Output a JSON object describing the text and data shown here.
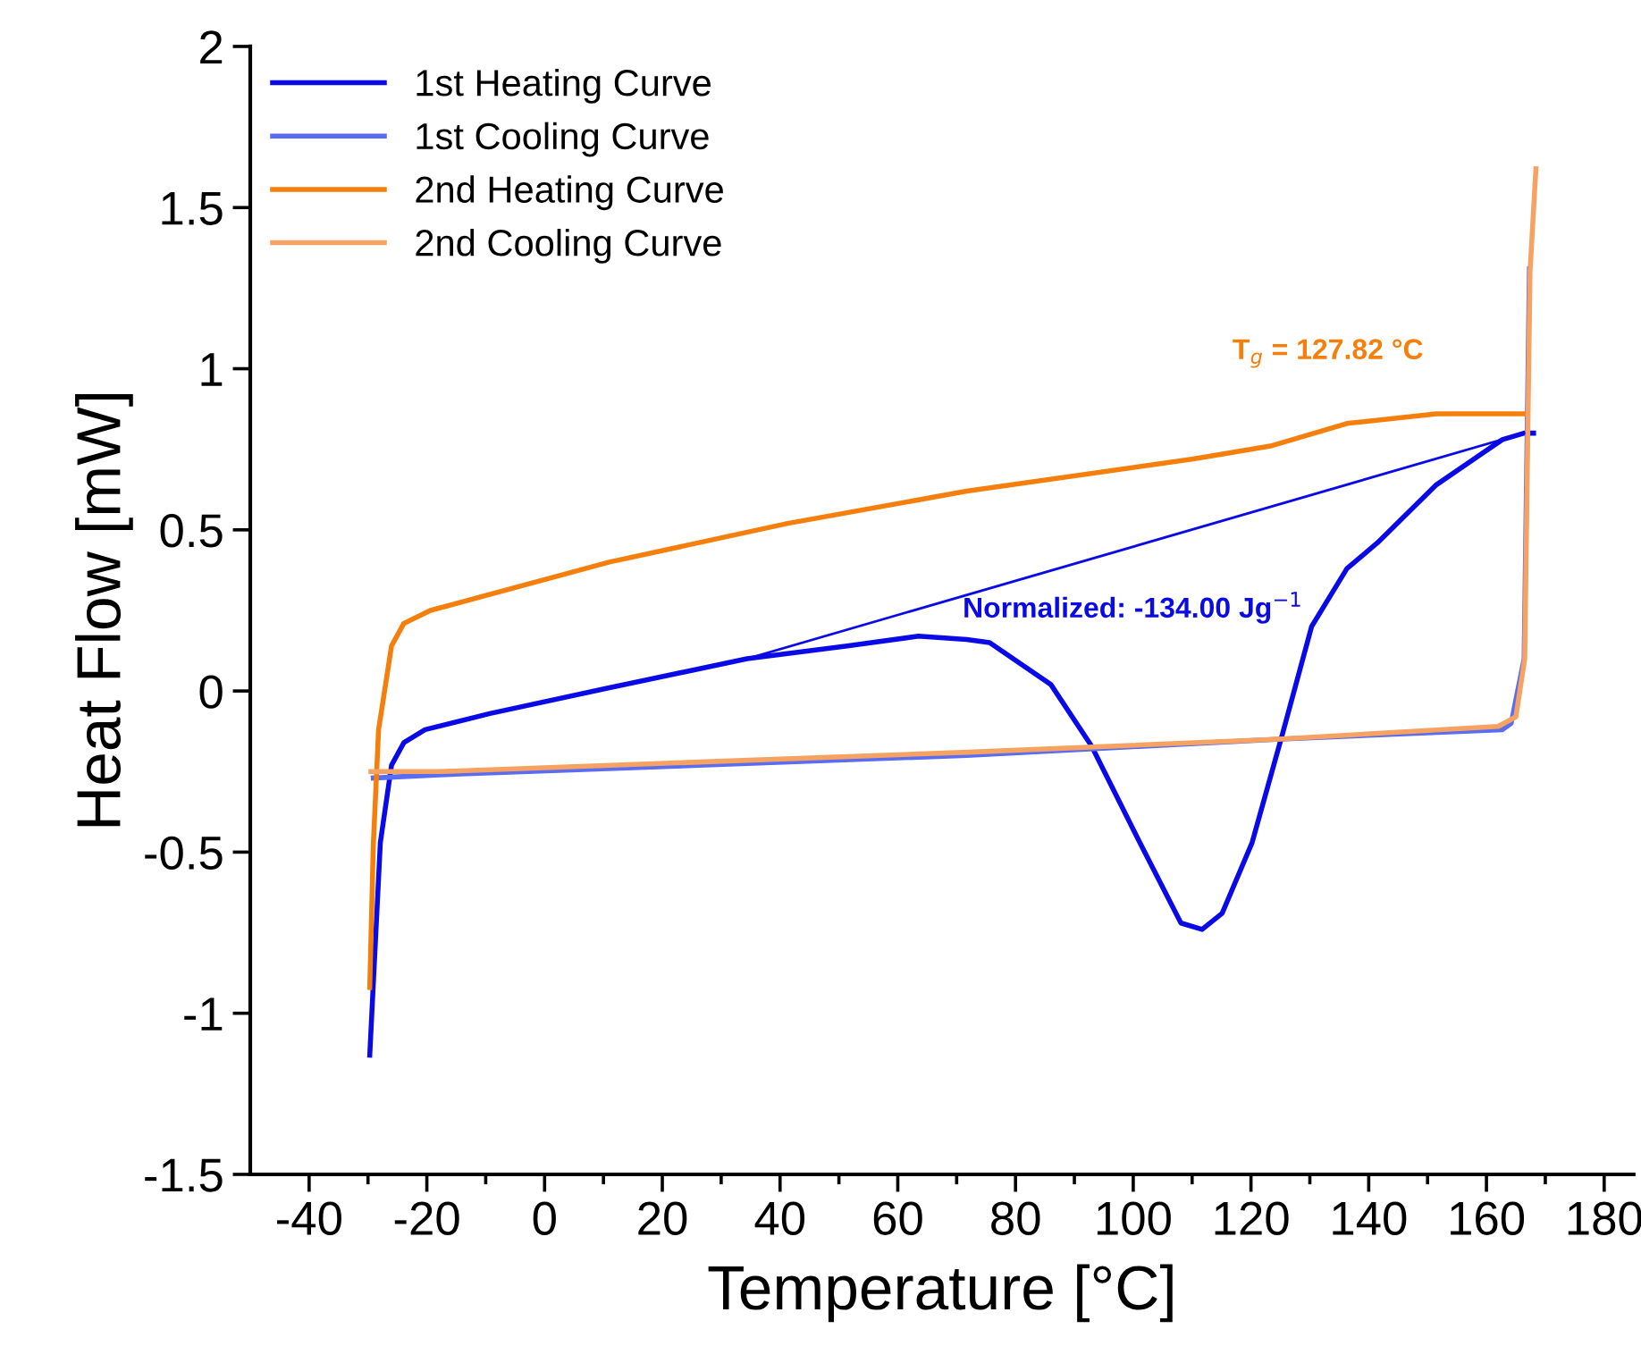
{
  "chart_data": {
    "type": "line",
    "xlabel": "Temperature [°C]",
    "ylabel": "Heat Flow [mW]",
    "xlim": [
      -50,
      185
    ],
    "ylim": [
      -1.5,
      2
    ],
    "xticks": [
      -40,
      {
        "value": -30,
        "label": null
      },
      -20,
      {
        "value": -10,
        "label": null
      },
      0,
      {
        "value": 10,
        "label": null
      },
      20,
      {
        "value": 30,
        "label": null
      },
      40,
      {
        "value": 50,
        "label": null
      },
      60,
      {
        "value": 70,
        "label": null
      },
      80,
      {
        "value": 90,
        "label": null
      },
      100,
      {
        "value": 110,
        "label": null
      },
      120,
      {
        "value": 130,
        "label": null
      },
      140,
      {
        "value": 150,
        "label": null
      },
      160,
      {
        "value": 170,
        "label": null
      },
      180
    ],
    "yticks": [
      -1.5,
      -1,
      -0.5,
      0,
      0.5,
      1,
      1.5,
      2
    ],
    "grid": false,
    "legend": "top left",
    "line_style": "solid",
    "marker": "none",
    "annotations": [
      "T$_{g}$ = 127.82 °C",
      "Normalized: -134.00 Jg$^{−1}$"
    ],
    "series": [
      {
        "name": "1st Heating Curve",
        "color": "#0a0ae6",
        "x": [
          -29.7,
          -27.9,
          -26.0,
          -23.9,
          -20.3,
          -9.3,
          11.0,
          34.4,
          51.4,
          63.5,
          71.7,
          75.6,
          86.0,
          92.9,
          101.1,
          108.1,
          111.7,
          115.1,
          120.2,
          125.4,
          130.3,
          136.3,
          141.5,
          151.5,
          162.7,
          166.4,
          168.0
        ],
        "values": [
          -1.13,
          -0.47,
          -0.23,
          -0.16,
          -0.12,
          -0.07,
          0.01,
          0.1,
          0.14,
          0.17,
          0.16,
          0.15,
          0.02,
          -0.17,
          -0.47,
          -0.72,
          -0.74,
          -0.69,
          -0.47,
          -0.13,
          0.2,
          0.38,
          0.46,
          0.64,
          0.78,
          0.8,
          0.8
        ]
      },
      {
        "name": "1st Cooling Curve",
        "color": "#5a6cf2",
        "x": [
          167.3,
          166.4,
          164.2,
          162.7,
          124.2,
          71.7,
          -17.8,
          -29.1
        ],
        "values": [
          1.31,
          0.1,
          -0.1,
          -0.12,
          -0.15,
          -0.2,
          -0.26,
          -0.27
        ]
      },
      {
        "name": "2nd Heating Curve",
        "color": "#f57f0c",
        "x": [
          -29.7,
          -29.1,
          -28.2,
          -26.0,
          -23.9,
          -19.4,
          11.0,
          41.3,
          71.7,
          110.2,
          123.3,
          136.3,
          151.5,
          166.4
        ],
        "values": [
          -0.92,
          -0.48,
          -0.12,
          0.14,
          0.21,
          0.25,
          0.4,
          0.52,
          0.62,
          0.72,
          0.76,
          0.83,
          0.86,
          0.86
        ]
      },
      {
        "name": "2nd Cooling Curve",
        "color": "#f5a263",
        "x": [
          168.4,
          167.4,
          166.5,
          165.0,
          162.0,
          124.0,
          72.0,
          -17.8,
          -29.5
        ],
        "values": [
          1.62,
          1.3,
          0.1,
          -0.08,
          -0.11,
          -0.15,
          -0.19,
          -0.25,
          -0.25
        ]
      },
      {
        "color": "#0a0ae6",
        "x": [
          34.4,
          166.4
        ],
        "values": [
          0.1,
          0.8
        ]
      }
    ]
  }
}
